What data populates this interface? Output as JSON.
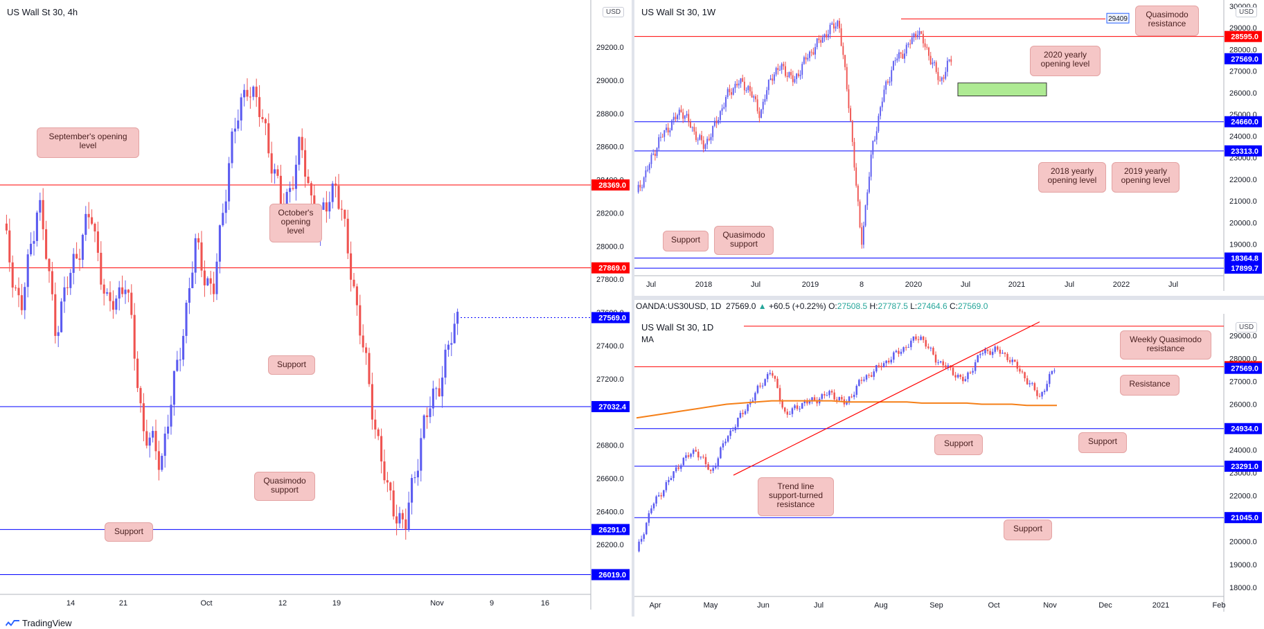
{
  "panels": {
    "left": {
      "title": "US Wall St 30, 4h",
      "currency": "USD",
      "y_ticks": [
        "29200.0",
        "29000.0",
        "28800.0",
        "28600.0",
        "28400.0",
        "28200.0",
        "28000.0",
        "27800.0",
        "27600.0",
        "27400.0",
        "27200.0",
        "26800.0",
        "26600.0",
        "26400.0",
        "26200.0"
      ],
      "x_ticks": [
        "14",
        "21",
        "Oct",
        "12",
        "19",
        "Nov",
        "9",
        "16"
      ],
      "price_tags": [
        {
          "value": "28369.0",
          "color": "red"
        },
        {
          "value": "27869.0",
          "color": "red"
        },
        {
          "value": "27569.0",
          "color": "blue"
        },
        {
          "value": "27032.4",
          "color": "blue"
        },
        {
          "value": "26291.0",
          "color": "blue"
        },
        {
          "value": "26019.0",
          "color": "blue"
        }
      ],
      "callouts": [
        "September's opening level",
        "October's opening level",
        "Support",
        "Quasimodo support",
        "Support"
      ]
    },
    "top_right": {
      "title": "US Wall St 30, 1W",
      "currency": "USD",
      "y_ticks": [
        "30000.0",
        "29000.0",
        "28000.0",
        "27000.0",
        "26000.0",
        "25000.0",
        "24000.0",
        "23000.0",
        "22000.0",
        "21000.0",
        "20000.0",
        "19000.0",
        "18000.0"
      ],
      "x_ticks": [
        "Jul",
        "2018",
        "Jul",
        "2019",
        "8",
        "2020",
        "Jul",
        "2021",
        "Jul",
        "2022",
        "Jul"
      ],
      "price_tags": [
        {
          "value": "28595.0",
          "color": "red"
        },
        {
          "value": "27569.0",
          "color": "blue"
        },
        {
          "value": "24660.0",
          "color": "blue"
        },
        {
          "value": "23313.0",
          "color": "blue"
        },
        {
          "value": "18364.8",
          "color": "blue"
        },
        {
          "value": "17899.7",
          "color": "blue"
        }
      ],
      "box_label": "29409",
      "callouts": [
        "Quasimodo resistance",
        "2020 yearly opening level",
        "2018 yearly opening level",
        "2019 yearly opening level",
        "Support",
        "Quasimodo support"
      ]
    },
    "bottom_right": {
      "title": "US Wall St 30, 1D",
      "indicator": "MA",
      "currency": "USD",
      "y_ticks": [
        "29000.0",
        "28000.0",
        "27000.0",
        "26000.0",
        "25000.0",
        "24000.0",
        "23000.0",
        "22000.0",
        "21000.0",
        "20000.0",
        "19000.0",
        "18000.0"
      ],
      "x_ticks": [
        "Apr",
        "May",
        "Jun",
        "Jul",
        "Aug",
        "Sep",
        "Oct",
        "Nov",
        "Dec",
        "2021",
        "Feb"
      ],
      "price_tags": [
        {
          "value": "27640.0",
          "color": "red"
        },
        {
          "value": "27569.0",
          "color": "blue"
        },
        {
          "value": "24934.0",
          "color": "blue"
        },
        {
          "value": "23291.0",
          "color": "blue"
        },
        {
          "value": "21045.0",
          "color": "blue"
        }
      ],
      "callouts": [
        "Weekly Quasimodo resistance",
        "Resistance",
        "Support",
        "Support",
        "Trend line support-turned resistance",
        "Support"
      ]
    }
  },
  "ohlc_bar": {
    "symbol": "OANDA:US30USD, 1D",
    "last": "27569.0",
    "change": "+60.5 (+0.22%)",
    "open_label": "O:",
    "open": "27508.5",
    "high_label": "H:",
    "high": "27787.5",
    "low_label": "L:",
    "low": "27464.6",
    "close_label": "C:",
    "close": "27569.0"
  },
  "brand": "TradingView",
  "colors": {
    "up": "#5b5bf0",
    "down": "#ef5350",
    "level_red": "#ff0000",
    "level_blue": "#0000ff",
    "ma": "#f57f17",
    "zone": "#a5e887"
  },
  "chart_data": [
    {
      "type": "line",
      "title": "US Wall St 30, 4h",
      "series": [
        {
          "values": [
            28100,
            27600,
            28300,
            27500,
            27900,
            28200,
            27600,
            27800,
            26900,
            26700,
            27300,
            28000,
            27700,
            28600,
            29000,
            28700,
            28200,
            28600,
            28100,
            28400,
            27800,
            27100,
            26500,
            26300,
            26900,
            27200,
            27569
          ]
        }
      ],
      "levels": [
        28369.0,
        27869.0,
        27032.4,
        26291.0,
        26019.0
      ],
      "ylim": [
        26000,
        29300
      ]
    },
    {
      "type": "line",
      "title": "US Wall St 30, 1W",
      "series": [
        {
          "values": [
            21300,
            22500,
            23800,
            24500,
            25200,
            24300,
            23500,
            24500,
            25800,
            26500,
            26200,
            25000,
            26800,
            27200,
            26500,
            27500,
            28200,
            28800,
            29300,
            25000,
            19000,
            23500,
            26000,
            27500,
            28000,
            28900,
            27800,
            26500,
            27569
          ]
        }
      ],
      "levels": [
        28595.0,
        24660.0,
        23313.0,
        18364.8,
        17899.7
      ],
      "ylim": [
        17500,
        30100
      ]
    },
    {
      "type": "line",
      "title": "US Wall St 30, 1D",
      "series": [
        {
          "values": [
            19500,
            21500,
            22500,
            23500,
            24000,
            23000,
            24500,
            25500,
            26500,
            27500,
            25500,
            26000,
            26200,
            26500,
            26000,
            27000,
            27500,
            28000,
            28500,
            29000,
            28000,
            27500,
            27000,
            28200,
            28400,
            28000,
            27200,
            26300,
            27569
          ]
        },
        {
          "name": "MA",
          "values": [
            25400,
            25500,
            25600,
            25700,
            25800,
            25900,
            26000,
            26050,
            26100,
            26150,
            26150,
            26150,
            26150,
            26150,
            26100,
            26100,
            26100,
            26100,
            26100,
            26050,
            26050,
            26050,
            26050,
            26000,
            26000,
            26000,
            25950,
            25950,
            25950
          ]
        }
      ],
      "levels": [
        27640.0,
        24934.0,
        23291.0,
        21045.0
      ],
      "ylim": [
        17500,
        29700
      ]
    }
  ]
}
